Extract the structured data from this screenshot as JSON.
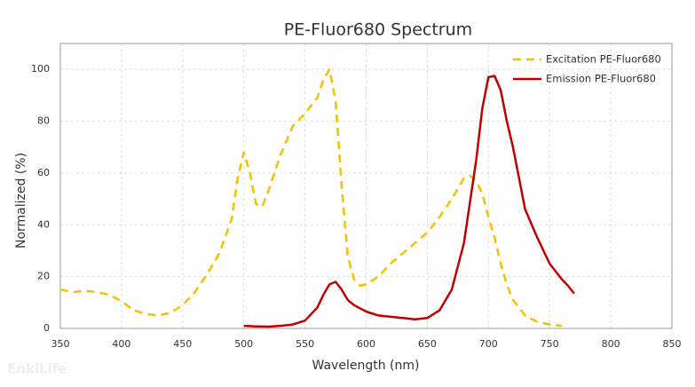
{
  "chart_data": {
    "type": "line",
    "title": "PE-Fluor680  Spectrum",
    "x_label": "Wavelength (nm)",
    "y_label": "Normalized (%)",
    "watermark": "EnkiLife",
    "xlim": [
      350,
      850
    ],
    "xticks": [
      350,
      400,
      450,
      500,
      550,
      600,
      650,
      700,
      750,
      800,
      850
    ],
    "ylim": [
      0,
      110
    ],
    "yticks": [
      0,
      20,
      40,
      60,
      80,
      100
    ],
    "grid": true,
    "legend": "top-right",
    "series": [
      {
        "name": "Excitation PE-Fluor680",
        "color": "#f5c000",
        "dash": true,
        "x": [
          350,
          360,
          370,
          380,
          390,
          400,
          410,
          420,
          430,
          440,
          450,
          460,
          470,
          480,
          490,
          495,
          500,
          505,
          510,
          515,
          520,
          530,
          540,
          550,
          560,
          565,
          570,
          575,
          580,
          585,
          590,
          595,
          600,
          610,
          620,
          630,
          640,
          650,
          660,
          670,
          680,
          685,
          690,
          695,
          700,
          705,
          710,
          715,
          720,
          730,
          740,
          750,
          760
        ],
        "values": [
          15,
          14,
          14.5,
          14,
          13,
          10.5,
          7,
          5.5,
          5,
          6,
          9,
          14,
          21,
          29,
          42,
          58,
          68,
          60,
          48,
          47,
          53,
          67,
          78,
          83,
          89,
          96,
          100,
          88,
          55,
          28,
          19,
          16.5,
          17,
          20,
          25,
          29,
          33,
          37,
          43,
          50,
          58,
          59,
          57,
          52,
          43,
          35,
          25,
          17,
          11,
          5,
          2.5,
          1.5,
          1
        ]
      },
      {
        "name": "Emission PE-Fluor680",
        "color": "#c00000",
        "dash": false,
        "x": [
          500,
          510,
          520,
          530,
          540,
          550,
          560,
          565,
          570,
          575,
          580,
          585,
          590,
          600,
          610,
          620,
          630,
          640,
          650,
          660,
          670,
          680,
          690,
          695,
          700,
          705,
          710,
          715,
          720,
          730,
          740,
          750,
          760,
          765,
          770
        ],
        "values": [
          1,
          0.8,
          0.7,
          1,
          1.5,
          3,
          8,
          13,
          17,
          18,
          15,
          11,
          9,
          6.5,
          5,
          4.5,
          4,
          3.5,
          4,
          7,
          15,
          33,
          65,
          85,
          97,
          97.5,
          92,
          80,
          70,
          46,
          35,
          25,
          19,
          16.5,
          13.5
        ]
      }
    ]
  }
}
